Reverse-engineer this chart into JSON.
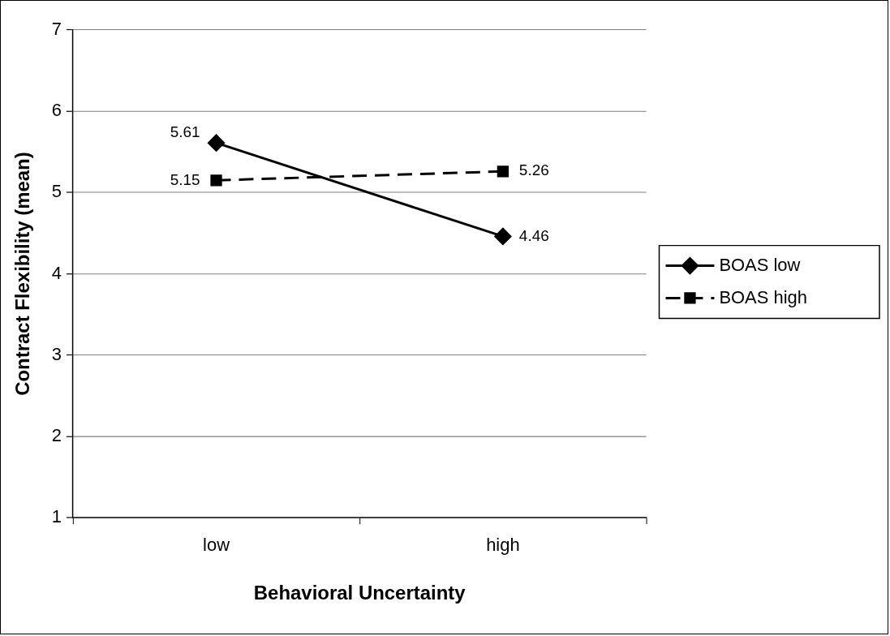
{
  "chart_data": {
    "type": "line",
    "xlabel": "Behavioral Uncertainty",
    "ylabel": "Contract Flexibility (mean)",
    "categories": [
      "low",
      "high"
    ],
    "series": [
      {
        "name": "BOAS low",
        "color": "#000000",
        "values": [
          5.61,
          4.46
        ],
        "marker": "diamond",
        "line_style": "solid"
      },
      {
        "name": "BOAS high",
        "color": "#000000",
        "values": [
          5.15,
          5.26
        ],
        "marker": "square",
        "line_style": "dashed"
      }
    ],
    "ylim": [
      1,
      7
    ],
    "yticks": [
      1,
      2,
      3,
      4,
      5,
      6,
      7
    ],
    "grid": "y",
    "legend": "right",
    "data_labels": true
  }
}
